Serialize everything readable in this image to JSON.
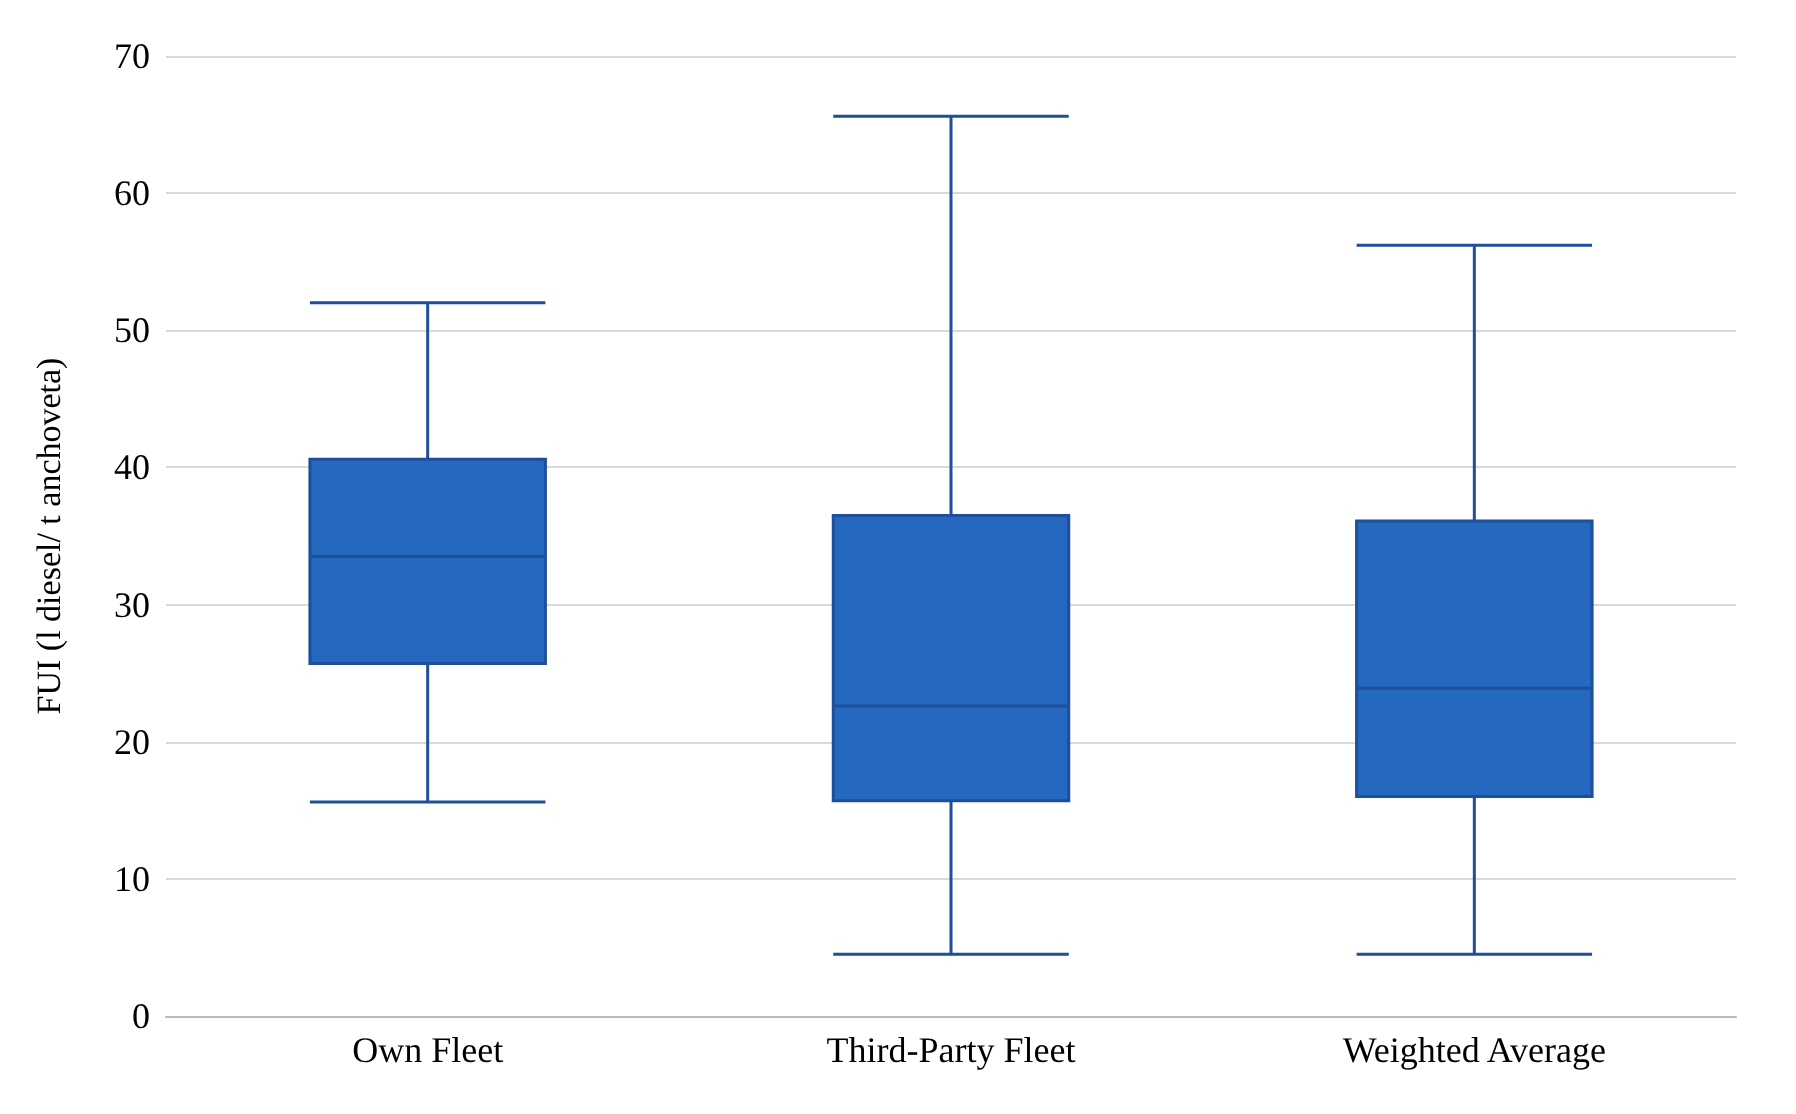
{
  "chart_data": {
    "type": "box",
    "ylabel": "FUI (l diesel/ t anchoveta)",
    "categories": [
      "Own Fleet",
      "Third-Party Fleet",
      "Weighted Average"
    ],
    "series": [
      {
        "color": "#2468bf",
        "boxes": [
          {
            "low": 15.6,
            "q1": 25.7,
            "median": 33.5,
            "q3": 40.6,
            "high": 52
          },
          {
            "low": 4.5,
            "q1": 15.7,
            "median": 22.6,
            "q3": 36.5,
            "high": 65.6
          },
          {
            "low": 4.5,
            "q1": 16,
            "median": 23.9,
            "q3": 36.1,
            "high": 56.2
          }
        ]
      }
    ],
    "ylim": [
      0,
      70
    ],
    "yticks": [
      0,
      10,
      20,
      30,
      40,
      50,
      60,
      70
    ],
    "grid": "y"
  }
}
